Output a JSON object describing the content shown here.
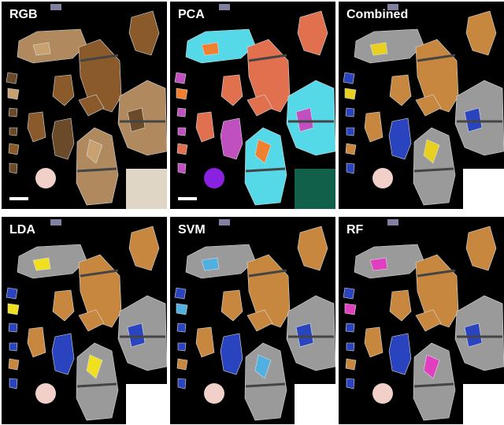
{
  "panels": [
    {
      "label": "RGB"
    },
    {
      "label": "PCA"
    },
    {
      "label": "Combined"
    },
    {
      "label": "LDA"
    },
    {
      "label": "SVM"
    },
    {
      "label": "RF"
    }
  ]
}
